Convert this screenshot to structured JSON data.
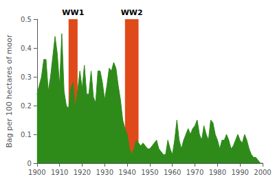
{
  "chart_data": {
    "type": "area",
    "ylabel": "Bag per 100 hectares of moor",
    "x": [
      1900,
      1901,
      1902,
      1903,
      1904,
      1905,
      1906,
      1907,
      1908,
      1909,
      1910,
      1911,
      1912,
      1913,
      1914,
      1915,
      1916,
      1917,
      1918,
      1919,
      1920,
      1921,
      1922,
      1923,
      1924,
      1925,
      1926,
      1927,
      1928,
      1929,
      1930,
      1931,
      1932,
      1933,
      1934,
      1935,
      1936,
      1937,
      1938,
      1939,
      1940,
      1941,
      1942,
      1943,
      1944,
      1945,
      1946,
      1947,
      1948,
      1949,
      1950,
      1951,
      1952,
      1953,
      1954,
      1955,
      1956,
      1957,
      1958,
      1959,
      1960,
      1961,
      1962,
      1963,
      1964,
      1965,
      1966,
      1967,
      1968,
      1969,
      1970,
      1971,
      1972,
      1973,
      1974,
      1975,
      1976,
      1977,
      1978,
      1979,
      1980,
      1981,
      1982,
      1983,
      1984,
      1985,
      1986,
      1987,
      1988,
      1989,
      1990,
      1991,
      1992,
      1993,
      1994,
      1995,
      1996,
      1997,
      1998,
      1999,
      2000
    ],
    "values": [
      0.24,
      0.27,
      0.3,
      0.36,
      0.36,
      0.25,
      0.3,
      0.37,
      0.44,
      0.38,
      0.27,
      0.45,
      0.25,
      0.2,
      0.19,
      0.26,
      0.28,
      0.19,
      0.25,
      0.32,
      0.26,
      0.34,
      0.24,
      0.24,
      0.32,
      0.23,
      0.21,
      0.32,
      0.32,
      0.28,
      0.22,
      0.27,
      0.33,
      0.32,
      0.35,
      0.33,
      0.27,
      0.22,
      0.15,
      0.12,
      0.1,
      0.05,
      0.03,
      0.05,
      0.08,
      0.07,
      0.06,
      0.07,
      0.06,
      0.05,
      0.05,
      0.06,
      0.07,
      0.08,
      0.05,
      0.04,
      0.03,
      0.03,
      0.08,
      0.05,
      0.03,
      0.08,
      0.15,
      0.08,
      0.05,
      0.08,
      0.1,
      0.12,
      0.1,
      0.12,
      0.13,
      0.15,
      0.1,
      0.08,
      0.13,
      0.1,
      0.08,
      0.15,
      0.14,
      0.1,
      0.08,
      0.05,
      0.08,
      0.08,
      0.1,
      0.08,
      0.05,
      0.06,
      0.08,
      0.1,
      0.08,
      0.07,
      0.1,
      0.08,
      0.05,
      0.03,
      0.02,
      0.02,
      0.01,
      0.0,
      0.0
    ],
    "color": "#2e8b1a",
    "annotations": [
      {
        "text": "WW1",
        "x_start": 1914,
        "x_end": 1918,
        "color": "#e04a1a"
      },
      {
        "text": "WW2",
        "x_start": 1939,
        "x_end": 1945,
        "color": "#e04a1a"
      }
    ],
    "xlim": [
      1900,
      2000
    ],
    "xticks": [
      1900,
      1910,
      1920,
      1930,
      1940,
      1950,
      1960,
      1970,
      1980,
      1990,
      2000
    ],
    "ylim": [
      0,
      0.5
    ],
    "yticks": [
      0,
      0.1,
      0.2,
      0.3,
      0.4,
      0.5
    ],
    "grid": false
  }
}
